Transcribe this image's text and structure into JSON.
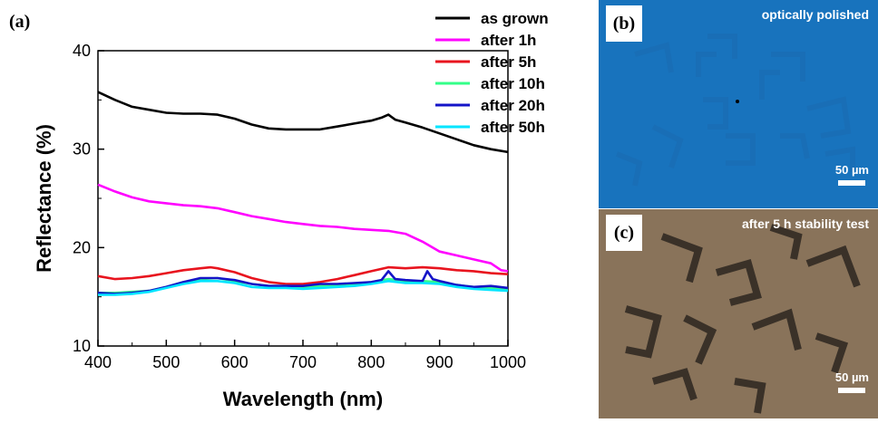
{
  "chart_data": {
    "type": "line",
    "panel_label": "(a)",
    "xlabel": "Wavelength (nm)",
    "ylabel": "Reflectance (%)",
    "xlim": [
      400,
      1000
    ],
    "ylim": [
      10,
      40
    ],
    "xticks": [
      400,
      500,
      600,
      700,
      800,
      900,
      1000
    ],
    "yticks": [
      10,
      20,
      30,
      40
    ],
    "grid": false,
    "legend_position": "top-right",
    "series": [
      {
        "name": "as grown",
        "color": "#000000",
        "x": [
          400,
          425,
          450,
          475,
          500,
          525,
          550,
          575,
          600,
          625,
          650,
          675,
          700,
          725,
          750,
          775,
          800,
          815,
          825,
          835,
          850,
          875,
          900,
          925,
          950,
          975,
          1000
        ],
        "y": [
          35.8,
          35.0,
          34.3,
          34.0,
          33.7,
          33.6,
          33.6,
          33.5,
          33.1,
          32.5,
          32.1,
          32.0,
          32.0,
          32.0,
          32.3,
          32.6,
          32.9,
          33.2,
          33.5,
          33.0,
          32.7,
          32.2,
          31.6,
          31.0,
          30.4,
          30.0,
          29.7
        ]
      },
      {
        "name": "after 1h",
        "color": "#ff00ff",
        "x": [
          400,
          425,
          450,
          475,
          500,
          525,
          550,
          575,
          600,
          625,
          650,
          675,
          700,
          725,
          750,
          775,
          800,
          825,
          850,
          875,
          900,
          925,
          950,
          975,
          990,
          1000
        ],
        "y": [
          26.4,
          25.7,
          25.1,
          24.7,
          24.5,
          24.3,
          24.2,
          24.0,
          23.6,
          23.2,
          22.9,
          22.6,
          22.4,
          22.2,
          22.1,
          21.9,
          21.8,
          21.7,
          21.4,
          20.6,
          19.6,
          19.2,
          18.8,
          18.4,
          17.7,
          17.6
        ]
      },
      {
        "name": "after 5h",
        "color": "#e8141e",
        "x": [
          400,
          425,
          450,
          475,
          500,
          525,
          550,
          565,
          575,
          600,
          625,
          650,
          675,
          700,
          725,
          750,
          775,
          800,
          825,
          850,
          875,
          900,
          925,
          950,
          975,
          1000
        ],
        "y": [
          17.1,
          16.8,
          16.9,
          17.1,
          17.4,
          17.7,
          17.9,
          18.0,
          17.9,
          17.5,
          16.9,
          16.5,
          16.3,
          16.3,
          16.5,
          16.8,
          17.2,
          17.6,
          18.0,
          17.9,
          18.0,
          17.9,
          17.7,
          17.6,
          17.4,
          17.3
        ]
      },
      {
        "name": "after 10h",
        "color": "#33ff88",
        "x": [
          400,
          425,
          450,
          475,
          500,
          525,
          550,
          575,
          600,
          625,
          650,
          675,
          700,
          725,
          750,
          775,
          800,
          825,
          850,
          875,
          900,
          925,
          950,
          975,
          1000
        ],
        "y": [
          15.4,
          15.4,
          15.5,
          15.6,
          16.0,
          16.5,
          16.8,
          16.9,
          16.6,
          16.3,
          16.1,
          16.1,
          16.0,
          16.1,
          16.2,
          16.3,
          16.5,
          16.8,
          16.6,
          16.6,
          16.5,
          16.2,
          16.0,
          15.9,
          15.8
        ]
      },
      {
        "name": "after 20h",
        "color": "#1414c8",
        "x": [
          400,
          425,
          450,
          475,
          500,
          525,
          550,
          575,
          600,
          625,
          650,
          675,
          700,
          725,
          750,
          775,
          800,
          815,
          825,
          835,
          850,
          875,
          882,
          890,
          900,
          925,
          950,
          975,
          1000
        ],
        "y": [
          15.4,
          15.3,
          15.4,
          15.6,
          16.0,
          16.5,
          16.9,
          16.9,
          16.7,
          16.3,
          16.1,
          16.1,
          16.1,
          16.3,
          16.3,
          16.4,
          16.5,
          16.7,
          17.6,
          16.8,
          16.7,
          16.6,
          17.6,
          16.8,
          16.6,
          16.2,
          16.0,
          16.1,
          15.9
        ]
      },
      {
        "name": "after 50h",
        "color": "#00e5ff",
        "x": [
          400,
          425,
          450,
          475,
          500,
          525,
          550,
          575,
          600,
          625,
          650,
          675,
          700,
          725,
          750,
          775,
          800,
          825,
          850,
          875,
          900,
          925,
          950,
          975,
          1000
        ],
        "y": [
          15.2,
          15.2,
          15.3,
          15.5,
          15.9,
          16.3,
          16.6,
          16.6,
          16.4,
          16.0,
          15.9,
          15.9,
          15.8,
          15.9,
          16.0,
          16.1,
          16.3,
          16.6,
          16.4,
          16.4,
          16.3,
          16.0,
          15.8,
          15.7,
          15.6
        ]
      }
    ]
  },
  "images": [
    {
      "label": "(b)",
      "caption": "optically polished",
      "scale_label": "50 µm",
      "tint": "#1f86d2"
    },
    {
      "label": "(c)",
      "caption": "after 5 h stability test",
      "scale_label": "50 µm",
      "tint": "#7a6650"
    }
  ]
}
